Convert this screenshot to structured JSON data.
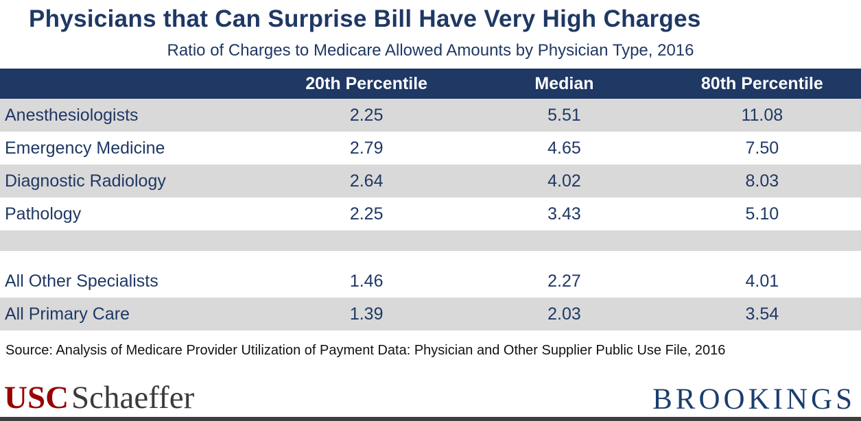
{
  "chart_data": {
    "type": "table",
    "title": "Physicians that Can Surprise Bill Have Very High Charges",
    "subtitle": "Ratio of Charges to Medicare Allowed Amounts by Physician Type, 2016",
    "columns": [
      "",
      "20th Percentile",
      "Median",
      "80th Percentile"
    ],
    "rows": [
      {
        "label": "Anesthesiologists",
        "values": [
          "2.25",
          "5.51",
          "11.08"
        ]
      },
      {
        "label": "Emergency Medicine",
        "values": [
          "2.79",
          "4.65",
          "7.50"
        ]
      },
      {
        "label": "Diagnostic Radiology",
        "values": [
          "2.64",
          "4.02",
          "8.03"
        ]
      },
      {
        "label": "Pathology",
        "values": [
          "2.25",
          "3.43",
          "5.10"
        ]
      },
      {
        "label": "All Other Specialists",
        "values": [
          "1.46",
          "2.27",
          "4.01"
        ]
      },
      {
        "label": "All Primary Care",
        "values": [
          "1.39",
          "2.03",
          "3.54"
        ]
      }
    ]
  },
  "source": "Source: Analysis of Medicare Provider Utilization of Payment Data: Physician and Other Supplier Public Use File, 2016",
  "footer": {
    "usc_text": "USC",
    "schaeffer_text": "Schaeffer",
    "brookings_text": "BROOKINGS"
  },
  "colors": {
    "navy": "#1f3864",
    "row_gray": "#d9d9d9",
    "usc_red": "#990000",
    "brookings_navy": "#1a3e6e"
  }
}
